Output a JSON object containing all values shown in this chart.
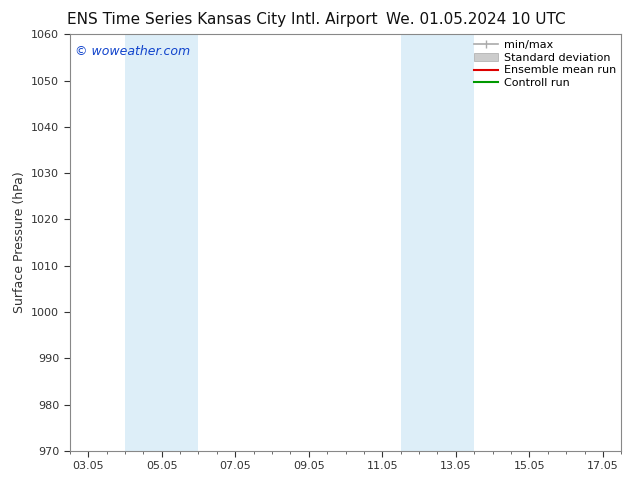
{
  "title": "ENS Time Series Kansas City Intl. Airport",
  "title_right": "We. 01.05.2024 10 UTC",
  "ylabel": "Surface Pressure (hPa)",
  "ylim": [
    970,
    1060
  ],
  "yticks": [
    970,
    980,
    990,
    1000,
    1010,
    1020,
    1030,
    1040,
    1050,
    1060
  ],
  "xlim": [
    1.5,
    16.5
  ],
  "xtick_positions": [
    2,
    4,
    6,
    8,
    10,
    12,
    14,
    16
  ],
  "xtick_labels": [
    "03.05",
    "05.05",
    "07.05",
    "09.05",
    "11.05",
    "13.05",
    "15.05",
    "17.05"
  ],
  "shaded_bands": [
    {
      "x_start": 3.0,
      "x_end": 5.0
    },
    {
      "x_start": 10.5,
      "x_end": 12.5
    }
  ],
  "band_color": "#ddeef8",
  "watermark": "© woweather.com",
  "watermark_color": "#1144cc",
  "legend_items": [
    {
      "label": "min/max",
      "color": "#aaaaaa",
      "lw": 1.2
    },
    {
      "label": "Standard deviation",
      "color": "#cccccc",
      "lw": 6
    },
    {
      "label": "Ensemble mean run",
      "color": "#dd0000",
      "lw": 1.5
    },
    {
      "label": "Controll run",
      "color": "#009900",
      "lw": 1.5
    }
  ],
  "bg_color": "#ffffff",
  "spine_color": "#888888",
  "tick_color": "#333333",
  "title_fontsize": 11,
  "ylabel_fontsize": 9,
  "tick_fontsize": 8,
  "watermark_fontsize": 9,
  "legend_fontsize": 8
}
